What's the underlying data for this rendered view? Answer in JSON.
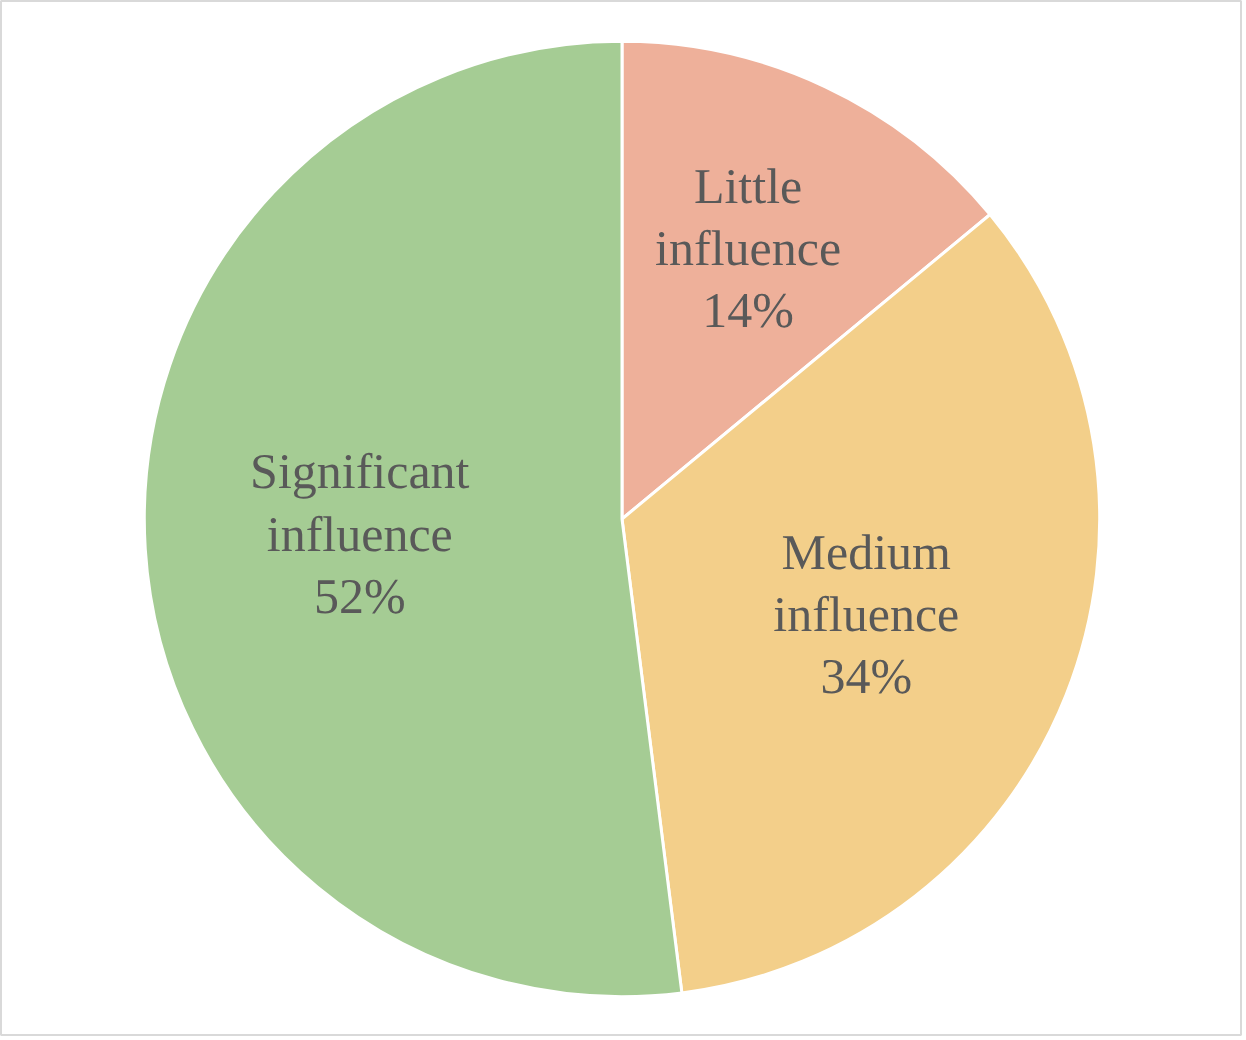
{
  "chart_data": {
    "type": "pie",
    "categories": [
      "Little influence",
      "Medium influence",
      "Significant influence"
    ],
    "values": [
      14,
      34,
      52
    ],
    "value_labels": [
      "14%",
      "34%",
      "52%"
    ],
    "colors": [
      "#eeb09a",
      "#f3cf8a",
      "#a5cc94"
    ]
  }
}
